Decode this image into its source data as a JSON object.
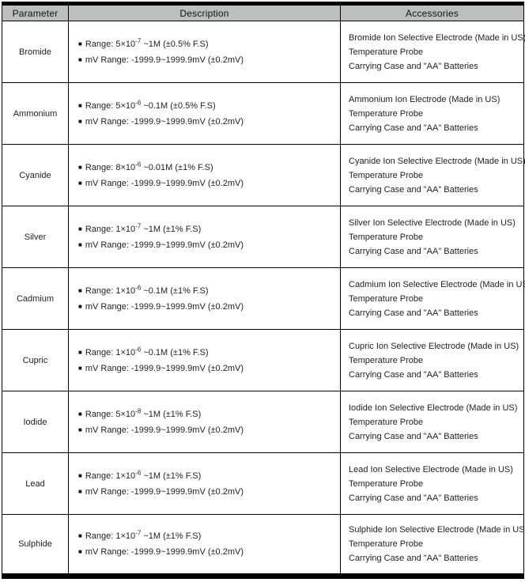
{
  "table": {
    "bullet": "■",
    "columns": [
      {
        "label": "Parameter"
      },
      {
        "label": "Description"
      },
      {
        "label": "Accessories"
      }
    ],
    "colors": {
      "header_bg": "#bdbfbf",
      "border": "#000000",
      "text": "#222222"
    },
    "rows": [
      {
        "parameter": "Bromide",
        "range_prefix": "Range: 5×10",
        "range_exp": "-7",
        "range_suffix": " ~1M (±0.5% F.S)",
        "mv_range": "mV Range: -1999.9~1999.9mV (±0.2mV)",
        "accessories": [
          "Bromide Ion Selective Electrode (Made in US)",
          "Temperature Probe",
          "Carrying Case and \"AA\" Batteries"
        ]
      },
      {
        "parameter": "Ammonium",
        "range_prefix": "Range: 5×10",
        "range_exp": "-6",
        "range_suffix": " ~0.1M (±0.5% F.S)",
        "mv_range": "mV Range: -1999.9~1999.9mV (±0.2mV)",
        "accessories": [
          "Ammonium Ion Electrode (Made in US)",
          "Temperature Probe",
          "Carrying Case and \"AA\" Batteries"
        ]
      },
      {
        "parameter": "Cyanide",
        "range_prefix": "Range: 8×10",
        "range_exp": "-6",
        "range_suffix": " ~0.01M (±1% F.S)",
        "mv_range": "mV Range: -1999.9~1999.9mV (±0.2mV)",
        "accessories": [
          "Cyanide Ion Selective Electrode (Made in US)",
          "Temperature Probe",
          "Carrying Case and \"AA\" Batteries"
        ]
      },
      {
        "parameter": "Silver",
        "range_prefix": "Range: 1×10",
        "range_exp": "-7",
        "range_suffix": " ~1M (±1% F.S)",
        "mv_range": "mV Range: -1999.9~1999.9mV (±0.2mV)",
        "accessories": [
          "Silver Ion Selective Electrode (Made in US)",
          "Temperature Probe",
          "Carrying Case and \"AA\" Batteries"
        ]
      },
      {
        "parameter": "Cadmium",
        "range_prefix": "Range: 1×10",
        "range_exp": "-6",
        "range_suffix": " ~0.1M (±1% F.S)",
        "mv_range": "mV Range: -1999.9~1999.9mV (±0.2mV)",
        "accessories": [
          "Cadmium Ion Selective Electrode (Made in US)",
          "Temperature Probe",
          "Carrying Case and \"AA\" Batteries"
        ]
      },
      {
        "parameter": "Cupric",
        "range_prefix": "Range: 1×10",
        "range_exp": "-6",
        "range_suffix": " ~0.1M (±1% F.S)",
        "mv_range": "mV Range: -1999.9~1999.9mV (±0.2mV)",
        "accessories": [
          "Cupric Ion Selective Electrode (Made in US)",
          "Temperature Probe",
          "Carrying Case and \"AA\" Batteries"
        ]
      },
      {
        "parameter": "Iodide",
        "range_prefix": "Range: 5×10",
        "range_exp": "-8",
        "range_suffix": " ~1M (±1% F.S)",
        "mv_range": "mV Range: -1999.9~1999.9mV (±0.2mV)",
        "accessories": [
          "Iodide Ion Selective Electrode (Made in US)",
          "Temperature Probe",
          "Carrying Case and \"AA\" Batteries"
        ]
      },
      {
        "parameter": "Lead",
        "range_prefix": "Range: 1×10",
        "range_exp": "-6",
        "range_suffix": " ~1M (±1% F.S)",
        "mv_range": "mV Range: -1999.9~1999.9mV (±0.2mV)",
        "accessories": [
          "Lead Ion Selective Electrode (Made in US)",
          "Temperature Probe",
          "Carrying Case and \"AA\" Batteries"
        ]
      },
      {
        "parameter": "Sulphide",
        "range_prefix": "Range: 1×10",
        "range_exp": "-7",
        "range_suffix": " ~1M (±1% F.S)",
        "mv_range": "mV Range: -1999.9~1999.9mV (±0.2mV)",
        "accessories": [
          "Sulphide Ion Selective Electrode (Made in US)",
          "Temperature Probe",
          "Carrying Case and \"AA\" Batteries"
        ]
      }
    ]
  }
}
